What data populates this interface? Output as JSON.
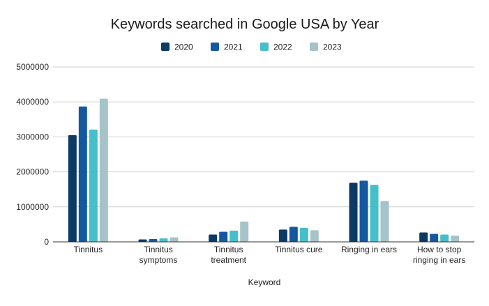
{
  "chart_data": {
    "type": "bar",
    "title": "Keywords searched in Google USA by Year",
    "xlabel": "Keyword",
    "ylabel": "",
    "ylim": [
      0,
      5000000
    ],
    "yticks": [
      0,
      1000000,
      2000000,
      3000000,
      4000000,
      5000000
    ],
    "ytick_labels": [
      "0",
      "1000000",
      "2000000",
      "3000000",
      "4000000",
      "5000000"
    ],
    "grid": true,
    "legend_position": "top",
    "categories": [
      [
        "Tinnitus"
      ],
      [
        "Tinnitus",
        "symptoms"
      ],
      [
        "Tinnitus",
        "treatment"
      ],
      [
        "Tinnitus cure"
      ],
      [
        "Ringing in ears"
      ],
      [
        "How to stop",
        "ringing in ears"
      ]
    ],
    "series": [
      {
        "name": "2020",
        "color": "#0b3a63",
        "values": [
          3050000,
          70000,
          210000,
          350000,
          1690000,
          270000
        ]
      },
      {
        "name": "2021",
        "color": "#1458a0",
        "values": [
          3870000,
          80000,
          290000,
          430000,
          1750000,
          230000
        ]
      },
      {
        "name": "2022",
        "color": "#45bfca",
        "values": [
          3210000,
          100000,
          320000,
          400000,
          1630000,
          210000
        ]
      },
      {
        "name": "2023",
        "color": "#a5c3c8",
        "values": [
          4090000,
          130000,
          580000,
          330000,
          1170000,
          180000
        ]
      }
    ]
  }
}
